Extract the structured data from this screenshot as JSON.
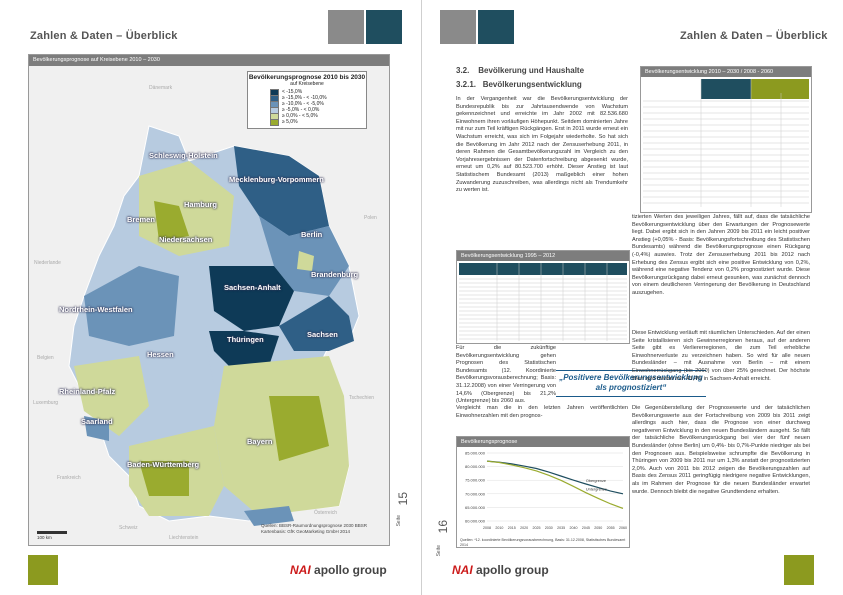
{
  "left_page": {
    "header_title": "Zahlen & Daten – Überblick",
    "header_colors": [
      "#8a8a8a",
      "#1f4e5f"
    ],
    "map": {
      "title": "Bevölkerungsprognose auf Kreisebene 2010 – 2030",
      "legend_title": "Bevölkerungsprognose 2010 bis 2030",
      "legend_subtitle": "auf Kreisebene",
      "legend_items": [
        {
          "label": "< -15,0%",
          "color": "#0e3a57"
        },
        {
          "label": "≥ -15,0% - < -10,0%",
          "color": "#2f5f86"
        },
        {
          "label": "≥ -10,0% - < -5,0%",
          "color": "#6b93b8"
        },
        {
          "label": "≥ -5,0% - < 0,0%",
          "color": "#b7cbe0"
        },
        {
          "label": "≥ 0,0% - < 5,0%",
          "color": "#cfd99a"
        },
        {
          "label": "≥ 5,0%",
          "color": "#9aab2f"
        }
      ],
      "states": [
        "Schleswig-Holstein",
        "Mecklenburg-Vorpommern",
        "Hamburg",
        "Bremen",
        "Niedersachsen",
        "Berlin",
        "Brandenburg",
        "Sachsen-Anhalt",
        "Nordrhein-Westfalen",
        "Hessen",
        "Thüringen",
        "Sachsen",
        "Rheinland-Pfalz",
        "Saarland",
        "Bayern",
        "Baden-Württemberg"
      ],
      "countries": [
        "Dänemark",
        "Polen",
        "Niederlande",
        "Belgien",
        "Luxemburg",
        "Frankreich",
        "Schweiz",
        "Liechtenstein",
        "Österreich",
        "Tschechien"
      ],
      "source_line1": "Quellen: BBSR-Raumordnungsprognose 2030 BBSR",
      "source_line2": "Kartenbasis: GfK GeoMarketing GmbH 2014",
      "scale_label": "100 km"
    },
    "seite_label": "Seite",
    "page_number": "15",
    "logo_mark": "NAI",
    "logo_text": "apollo group"
  },
  "right_page": {
    "header_title": "Zahlen & Daten – Überblick",
    "header_colors": [
      "#8a8a8a",
      "#1f4e5f"
    ],
    "section_number": "3.2.",
    "section_title": "Bevölkerung und Haushalte",
    "subsection_number": "3.2.1.",
    "subsection_title": "Bevölkerungsentwicklung",
    "intro_text": "In der Vergangenheit war die Bevölkerungsentwicklung der Bundesrepublik bis zur Jahrtausendwende von Wachstum gekennzeichnet und erreichte im Jahr 2002 mit 82.536.680 Einwohnern ihren vorläufigen Höhepunkt. Seitdem dominierten Jahre mit nur zum Teil kräftigen Rückgängen. Erst in 2011 wurde erneut ein Wachstum erreicht, was sich im Folgejahr wiederholte. So hat sich die Bevölkerung im Jahr 2012 nach der Zensuserhebung 2011, in deren Rahmen die Gesamtbevölkerungszahl im Vergleich zu den Vorjahresergebnissen der Datenfortschreibung abgesenkt wurde, erneut um 0,2% auf 80.523.700 erhöht. Dieser Anstieg ist laut Statistischem Bundesamt (2013) maßgeblich einer hohen Zuwanderung zuzuschreiben, was allerdings nicht als Trendumkehr zu werten ist.",
    "table1_title": "Bevölkerungsentwicklung 2010 – 2030 / 2008 - 2060",
    "table1_head": [
      "Tendenzierung 2010 - 2030*",
      "Tendenzierung 2008 - 2060 (alle Bundesländer)"
    ],
    "table1_head_sub": [
      "Prognose",
      "Untergrenze",
      "Obergrenze"
    ],
    "table1_rows_count_label": "Prognose",
    "table2_title": "Bevölkerungsentwicklung 1995 – 2012",
    "lower_left_text": "Für die zukünftige Bevölkerungsentwicklung gehen Prognosen des Statistischen Bundesamts (12. Koordinierte Bevölkerungsvorausberechnung; Basis: 31.12.2008) von einer Verringerung von 14,6% (Obergrenze) bis 21,2% (Untergrenze) bis 2060 aus.",
    "lower_left_text2": "Vergleicht man die in den letzten Jahren veröffentlichten Einwohnerzahlen mit den prognos-",
    "quote": "„Positivere Bevölkerungsentwicklung als prognostiziert“",
    "right_col_text1": "tizierten Werten des jeweiligen Jahres, fällt auf, dass die tatsächliche Bevölkerungsentwicklung über den Erwartungen der Prognosewerte liegt. Dabei ergibt sich in den Jahren 2009 bis 2011 ein leicht positiver Anstieg (+0,05% - Basis: Bevölkerungsfortschreibung des Statistischen Bundesamts) während die Bevölkerungsprognose einen Rückgang (-0,4%) auswies. Trotz der Zensuserhebung 2011 bis 2012 nach Erhebung des Zensus ergibt sich eine positive Entwicklung von 0,2%, während eine negative Tendenz von 0,2% prognostiziert wurde. Diese Bevölkerungsrückgang dabei erneut gesunken, was zunächst dennoch von einem deutlicheren Verringerung der Bevölkerung in Deutschland auszugehen.",
    "right_col_text2": "Diese Entwicklung verläuft mit räumlichen Unterschieden. Auf der einen Seite kristallisieren sich Gewinnerregionen heraus, auf der anderen Seite gibt es Verliererregionen, die zum Teil erhebliche Einwohnerverluste zu verzeichnen haben. So wird für alle neuen Bundesländer – mit Ausnahme von Berlin – mit einem Einwohnerrückgang (bis 2060) von über 25% gerechnet. Der höchste Wert wird hierbei mit -43,4% in Sachsen-Anhalt erreicht.",
    "right_col_text3": "Die Gegenüberstellung der Prognosewerte und der tatsächlichen Bevölkerungswerte aus der Fortschreibung von 2009 bis 2011 zeigt allerdings auch hier, dass die Prognose von einer durchweg negativeren Entwicklung in den neuen Bundesländern ausgeht. So fällt der tatsächliche Bevölkerungsrückgang bei vier der fünf neuen Bundesländer (ohne Berlin) um 0,4%- bis 0,7%-Punkte niedriger als bei den Prognosen aus. Beispielsweise schrumpfte die Bevölkerung in Thüringen von 2009 bis 2011 nur um 1,3% anstatt der prognostizierten 2,0%. Auch von 2011 bis 2012 zeigen die Bevölkerungszahlen auf Basis des Zensus 2011 geringfügig niedrigere negative Entwicklungen, als im Rahmen der Prognose für die neuen Bundesländer erwartet wurde. Dennoch bleibt die negative Grundtendenz erhalten.",
    "chart_title": "Bevölkerungsprognose",
    "chart_source": "Quellen: *12. koordinierte Bevölkerungsvorausberechnung, Basis: 31.12.2008, Statistisches Bundesamt 2014",
    "seite_label": "Seite",
    "page_number": "16",
    "logo_mark": "NAI",
    "logo_text": "apollo group"
  },
  "chart_data": {
    "type": "line",
    "title": "Bevölkerungsprognose",
    "x": [
      "2008",
      "2010",
      "2015",
      "2020",
      "2025",
      "2030",
      "2035",
      "2040",
      "2045",
      "2050",
      "2055",
      "2060"
    ],
    "ylim": [
      60000,
      85000
    ],
    "yticks": [
      "85.000.000",
      "80.000.000",
      "75.000.000",
      "70.000.000",
      "65.000.000",
      "60.000.000"
    ],
    "series": [
      {
        "name": "Obergrenze",
        "color": "#1f4e5f",
        "values": [
          82000,
          81600,
          81000,
          80200,
          79300,
          78000,
          76500,
          75000,
          73600,
          72300,
          71000,
          70000
        ]
      },
      {
        "name": "Untergrenze",
        "color": "#9aab2f",
        "values": [
          82000,
          81500,
          80600,
          79600,
          78400,
          76800,
          74900,
          72700,
          70400,
          68300,
          66300,
          64600
        ]
      }
    ]
  }
}
